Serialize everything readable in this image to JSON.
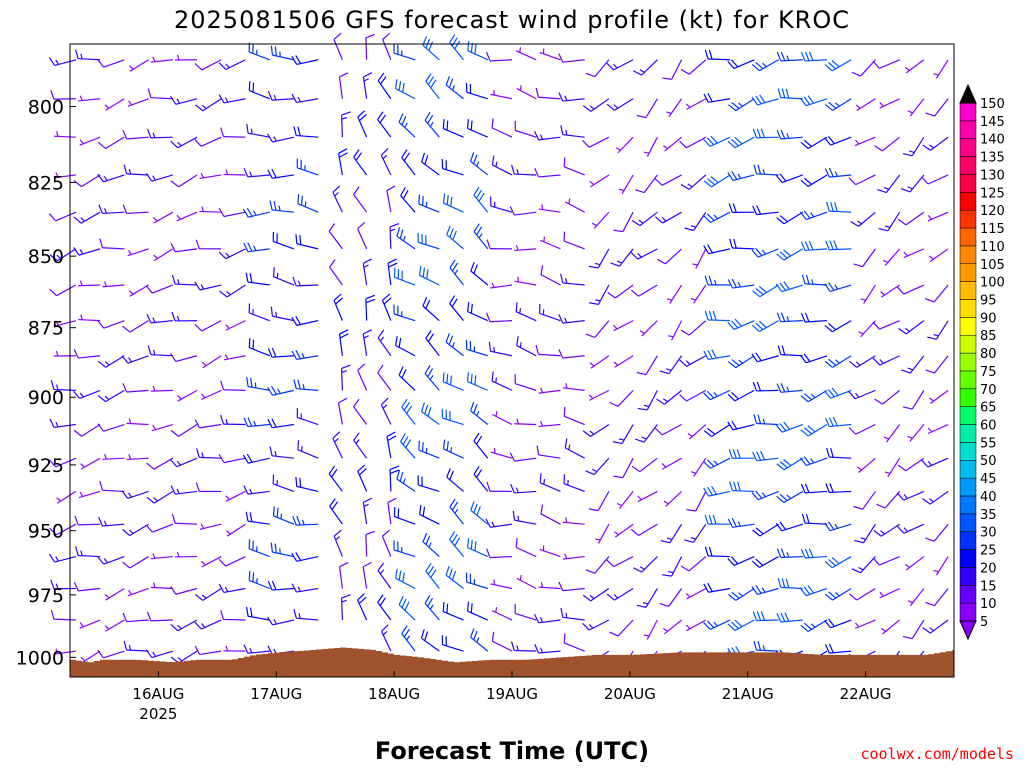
{
  "title": "2025081506 GFS forecast wind profile (kt) for KROC",
  "xlabel": "Forecast Time (UTC)",
  "credit": "coolwx.com/models",
  "colors": {
    "terrain": "#a0522d",
    "credit": "#ff0000",
    "frame": "#000000"
  },
  "chart_data": {
    "type": "wind-barb-time-height",
    "title": "2025081506 GFS forecast wind profile (kt) for KROC",
    "xlabel": "Forecast Time (UTC)",
    "ylabel": "",
    "y_axis": {
      "ticks": [
        800,
        825,
        850,
        875,
        900,
        925,
        950,
        975,
        1000
      ],
      "range_hpa": [
        780,
        1008
      ],
      "scale": "log-pressure"
    },
    "x_axis": {
      "ticks": [
        {
          "label": "16AUG",
          "sublabel": "2025",
          "day": 16
        },
        {
          "label": "17AUG",
          "sublabel": "",
          "day": 17
        },
        {
          "label": "18AUG",
          "sublabel": "",
          "day": 18
        },
        {
          "label": "19AUG",
          "sublabel": "",
          "day": 19
        },
        {
          "label": "20AUG",
          "sublabel": "",
          "day": 20
        },
        {
          "label": "21AUG",
          "sublabel": "",
          "day": 21
        },
        {
          "label": "22AUG",
          "sublabel": "",
          "day": 22
        }
      ],
      "range_days": [
        15.25,
        22.75
      ]
    },
    "colorbar": {
      "units": "kt",
      "levels": [
        5,
        10,
        15,
        20,
        25,
        30,
        35,
        40,
        45,
        50,
        55,
        60,
        65,
        70,
        75,
        80,
        85,
        90,
        95,
        100,
        105,
        110,
        115,
        120,
        125,
        130,
        135,
        140,
        145,
        150
      ],
      "colors": [
        "#8a00ff",
        "#6600ff",
        "#3300ff",
        "#0000ff",
        "#0033ff",
        "#0055ff",
        "#0077ff",
        "#0099ff",
        "#00bbee",
        "#00ddcc",
        "#00eeaa",
        "#00ff66",
        "#33ff00",
        "#66ff00",
        "#99ff00",
        "#ccff00",
        "#ffff00",
        "#ffdd00",
        "#ffbb00",
        "#ff9900",
        "#ff8800",
        "#ff6600",
        "#ff3300",
        "#ff0000",
        "#ff0044",
        "#ff0066",
        "#ff0088",
        "#ff00aa",
        "#ff00cc",
        "#ff00ff"
      ]
    },
    "surface_pressure_hpa": [
      [
        15.25,
        1001
      ],
      [
        15.4,
        1002
      ],
      [
        15.5,
        1001
      ],
      [
        15.8,
        1001
      ],
      [
        16.1,
        1002
      ],
      [
        16.3,
        1001
      ],
      [
        16.6,
        1001
      ],
      [
        16.8,
        999
      ],
      [
        17.0,
        998
      ],
      [
        17.3,
        997
      ],
      [
        17.55,
        996
      ],
      [
        17.8,
        997
      ],
      [
        18.0,
        999
      ],
      [
        18.2,
        1000
      ],
      [
        18.5,
        1002
      ],
      [
        18.8,
        1001
      ],
      [
        19.1,
        1001
      ],
      [
        19.4,
        1000
      ],
      [
        19.7,
        999
      ],
      [
        20.0,
        999
      ],
      [
        20.4,
        998
      ],
      [
        20.8,
        998
      ],
      [
        21.0,
        998
      ],
      [
        21.3,
        998
      ],
      [
        21.6,
        999
      ],
      [
        21.8,
        999
      ],
      [
        22.0,
        999
      ],
      [
        22.2,
        999
      ],
      [
        22.5,
        999
      ],
      [
        22.75,
        997
      ]
    ],
    "wind_regimes": [
      {
        "day_from": 15.25,
        "day_to": 16.75,
        "dir_deg": 255,
        "speed_kt": 10
      },
      {
        "day_from": 16.75,
        "day_to": 17.5,
        "dir_deg": 275,
        "speed_kt": 20
      },
      {
        "day_from": 17.5,
        "day_to": 18.0,
        "dir_deg": 340,
        "speed_kt": 15
      },
      {
        "day_from": 18.0,
        "day_to": 18.85,
        "dir_deg": 305,
        "speed_kt": 25
      },
      {
        "day_from": 18.85,
        "day_to": 19.8,
        "dir_deg": 280,
        "speed_kt": 10
      },
      {
        "day_from": 19.8,
        "day_to": 20.8,
        "dir_deg": 225,
        "speed_kt": 10
      },
      {
        "day_from": 20.8,
        "day_to": 21.9,
        "dir_deg": 255,
        "speed_kt": 25
      },
      {
        "day_from": 21.9,
        "day_to": 22.75,
        "dir_deg": 230,
        "speed_kt": 10
      }
    ]
  }
}
